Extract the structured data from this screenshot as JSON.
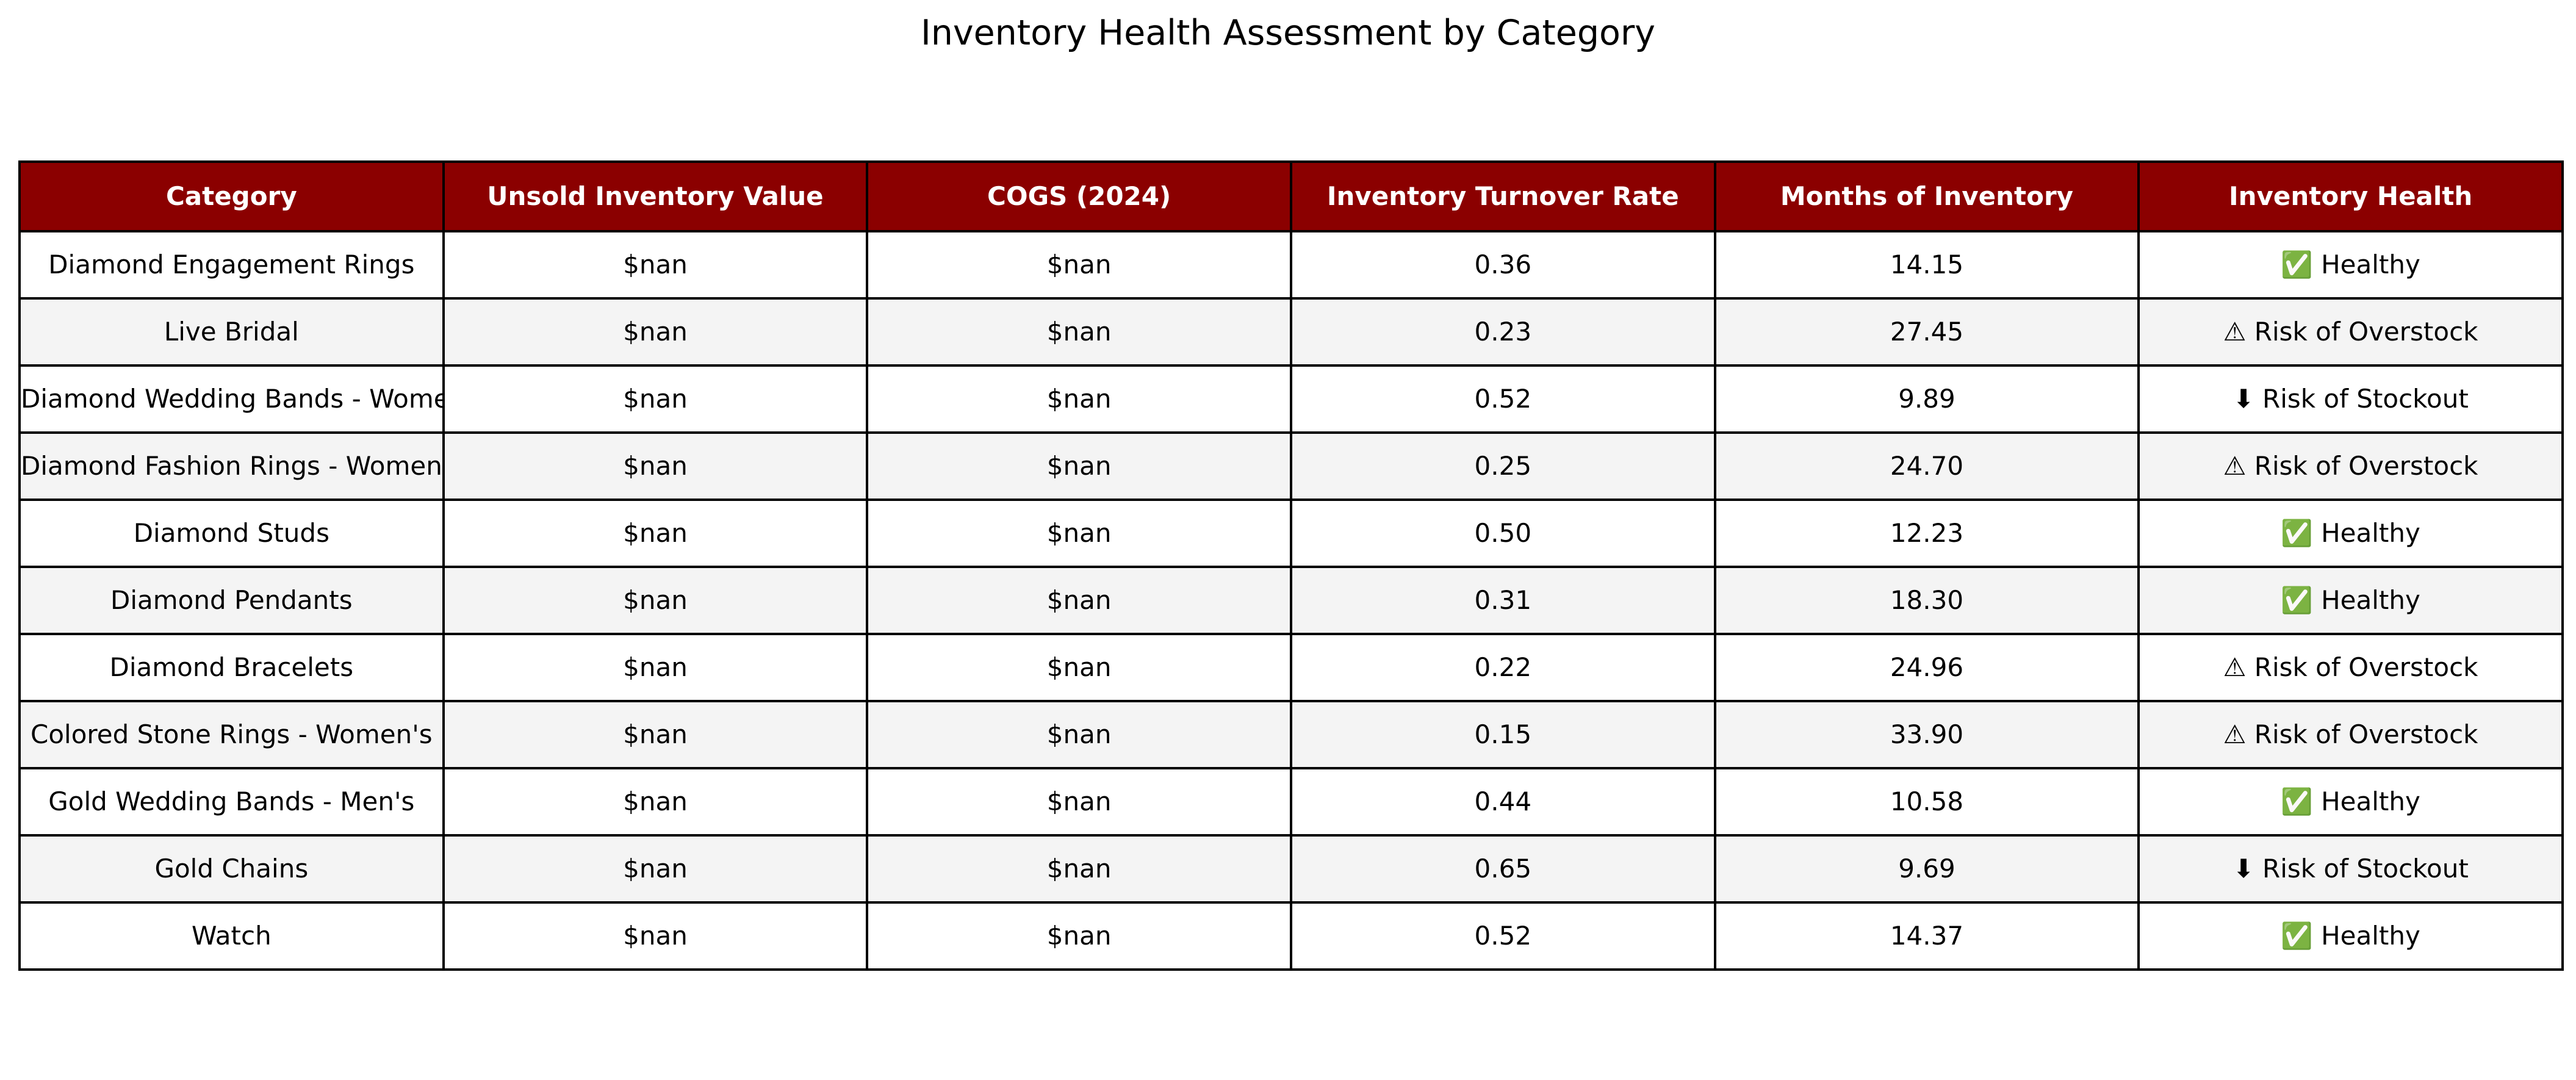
{
  "chart_data": {
    "type": "table",
    "title": "Inventory Health Assessment by Category",
    "columns": [
      "Category",
      "Unsold Inventory Value",
      "COGS (2024)",
      "Inventory Turnover Rate",
      "Months of Inventory",
      "Inventory Health"
    ],
    "rows": [
      [
        "Diamond Engagement Rings",
        "$nan",
        "$nan",
        "0.36",
        "14.15",
        "✅ Healthy"
      ],
      [
        "Live Bridal",
        "$nan",
        "$nan",
        "0.23",
        "27.45",
        "⚠ Risk of Overstock"
      ],
      [
        "Diamond Wedding Bands - Women's",
        "$nan",
        "$nan",
        "0.52",
        "9.89",
        "⬇ Risk of Stockout"
      ],
      [
        "Diamond Fashion Rings - Women's",
        "$nan",
        "$nan",
        "0.25",
        "24.70",
        "⚠ Risk of Overstock"
      ],
      [
        "Diamond Studs",
        "$nan",
        "$nan",
        "0.50",
        "12.23",
        "✅ Healthy"
      ],
      [
        "Diamond Pendants",
        "$nan",
        "$nan",
        "0.31",
        "18.30",
        "✅ Healthy"
      ],
      [
        "Diamond Bracelets",
        "$nan",
        "$nan",
        "0.22",
        "24.96",
        "⚠ Risk of Overstock"
      ],
      [
        "Colored Stone Rings - Women's",
        "$nan",
        "$nan",
        "0.15",
        "33.90",
        "⚠ Risk of Overstock"
      ],
      [
        "Gold Wedding Bands - Men's",
        "$nan",
        "$nan",
        "0.44",
        "10.58",
        "✅ Healthy"
      ],
      [
        "Gold Chains",
        "$nan",
        "$nan",
        "0.65",
        "9.69",
        "⬇ Risk of Stockout"
      ],
      [
        "Watch",
        "$nan",
        "$nan",
        "0.52",
        "14.37",
        "✅ Healthy"
      ]
    ],
    "colors": {
      "header_background": "#8b0000",
      "header_text": "#ffffff",
      "row_odd": "#ffffff",
      "row_even": "#f4f4f4",
      "border": "#000000"
    }
  }
}
